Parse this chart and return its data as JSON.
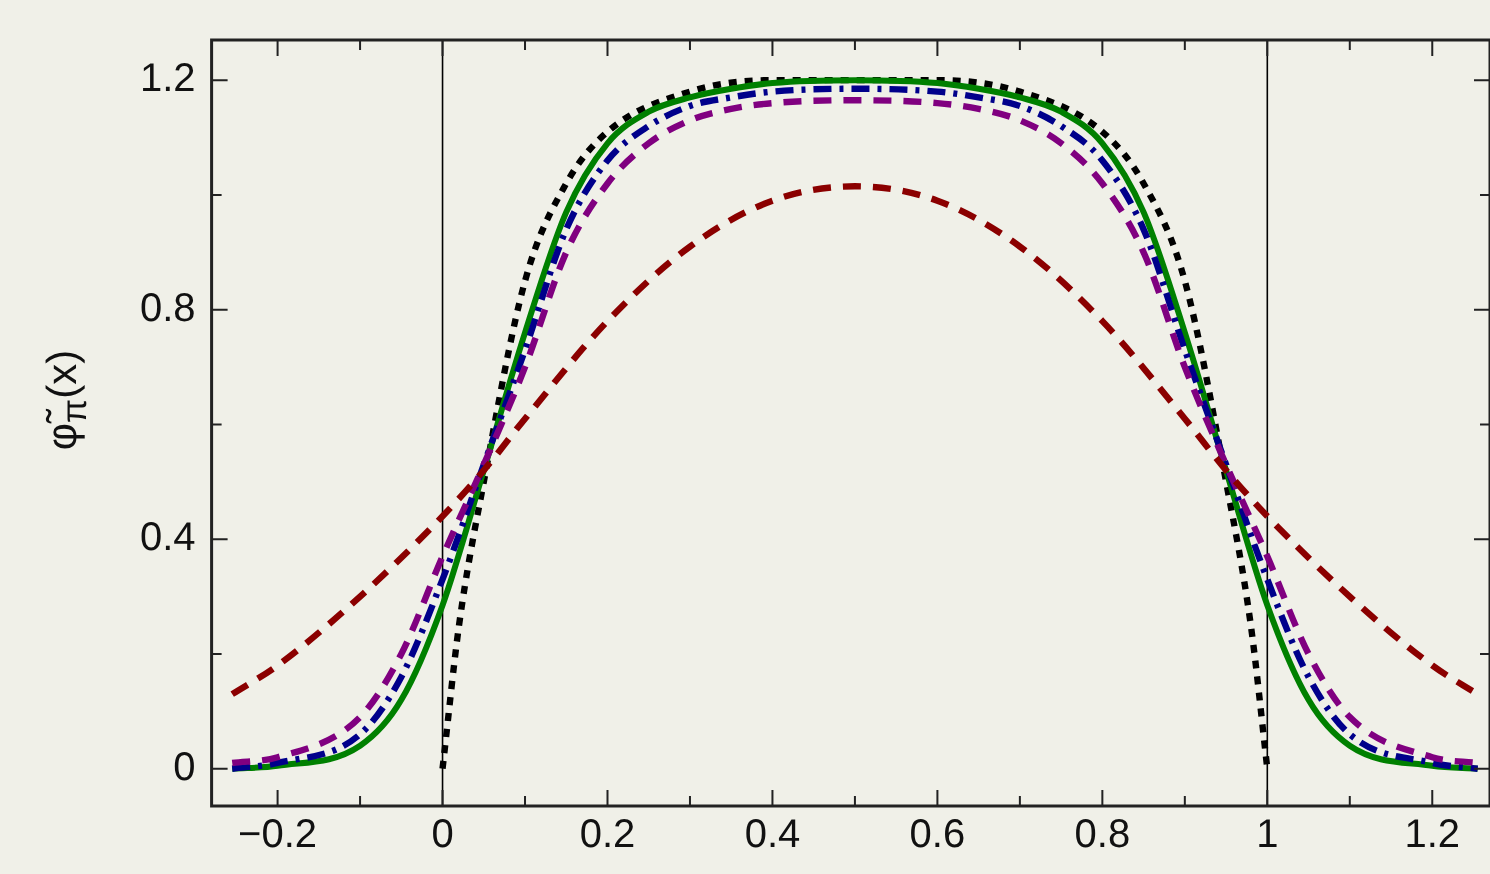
{
  "chart_data": {
    "type": "line",
    "ylabel": "φ̃$_{π}$(x)",
    "xlim": [
      -0.28,
      1.27
    ],
    "ylim": [
      -0.065,
      1.27
    ],
    "xticks": [
      -0.2,
      {
        "value": -0.1,
        "label": null
      },
      0,
      {
        "value": 0.1,
        "label": null
      },
      0.2,
      {
        "value": 0.3,
        "label": null
      },
      0.4,
      {
        "value": 0.5,
        "label": null
      },
      0.6,
      {
        "value": 0.7,
        "label": null
      },
      0.8,
      {
        "value": 0.9,
        "label": null
      },
      1,
      {
        "value": 1.1,
        "label": null
      },
      1.2
    ],
    "yticks": [
      0,
      {
        "value": 0.2,
        "label": null
      },
      0.4,
      {
        "value": 0.6,
        "label": null
      },
      0.8,
      {
        "value": 1.0,
        "label": null
      },
      1.2
    ],
    "grid": false,
    "legend": false,
    "marker": "none",
    "ref_lines": [
      {
        "axis": "x",
        "value": 0,
        "color": "#000000"
      },
      {
        "axis": "x",
        "value": 1,
        "color": "#000000"
      }
    ],
    "series": [
      {
        "color": "#8b0000",
        "line_style": "dashed",
        "x": [
          -0.255,
          -0.2,
          -0.1,
          0,
          0.05,
          0.1,
          0.2,
          0.3,
          0.4,
          0.5,
          0.6,
          0.7,
          0.8,
          0.9,
          0.95,
          1,
          1.1,
          1.2,
          1.255
        ],
        "values": [
          0.13,
          0.18,
          0.3,
          0.44,
          0.52,
          0.61,
          0.78,
          0.91,
          0.99,
          1.015,
          0.99,
          0.91,
          0.78,
          0.61,
          0.52,
          0.44,
          0.3,
          0.18,
          0.13
        ]
      },
      {
        "color": "#800080",
        "line_style": "dashed",
        "x": [
          -0.255,
          -0.2,
          -0.1,
          -0.05,
          0,
          0.05,
          0.1,
          0.15,
          0.2,
          0.25,
          0.3,
          0.35,
          0.4,
          0.5,
          0.6,
          0.65,
          0.7,
          0.75,
          0.8,
          0.85,
          0.9,
          0.95,
          1,
          1.05,
          1.1,
          1.2,
          1.255
        ],
        "values": [
          0.01,
          0.02,
          0.09,
          0.2,
          0.37,
          0.53,
          0.7,
          0.9,
          1.02,
          1.09,
          1.13,
          1.15,
          1.16,
          1.165,
          1.16,
          1.15,
          1.13,
          1.09,
          1.02,
          0.9,
          0.7,
          0.53,
          0.37,
          0.2,
          0.09,
          0.02,
          0.01
        ]
      },
      {
        "color": "#00008b",
        "line_style": "dashdot",
        "x": [
          -0.255,
          -0.2,
          -0.1,
          -0.05,
          0,
          0.05,
          0.1,
          0.15,
          0.2,
          0.25,
          0.3,
          0.35,
          0.4,
          0.5,
          0.6,
          0.65,
          0.7,
          0.75,
          0.8,
          0.85,
          0.9,
          0.95,
          1,
          1.05,
          1.1,
          1.2,
          1.255
        ],
        "values": [
          0,
          0.01,
          0.06,
          0.16,
          0.33,
          0.53,
          0.73,
          0.94,
          1.06,
          1.12,
          1.155,
          1.17,
          1.18,
          1.185,
          1.18,
          1.17,
          1.155,
          1.12,
          1.06,
          0.94,
          0.73,
          0.53,
          0.33,
          0.16,
          0.06,
          0.01,
          0
        ]
      },
      {
        "color": "#008000",
        "line_style": "solid",
        "x": [
          -0.255,
          -0.2,
          -0.1,
          -0.05,
          0,
          0.05,
          0.1,
          0.15,
          0.2,
          0.25,
          0.3,
          0.35,
          0.4,
          0.5,
          0.6,
          0.65,
          0.7,
          0.75,
          0.8,
          0.85,
          0.9,
          0.95,
          1,
          1.05,
          1.1,
          1.2,
          1.255
        ],
        "values": [
          0,
          0.005,
          0.04,
          0.12,
          0.285,
          0.52,
          0.76,
          0.97,
          1.09,
          1.145,
          1.17,
          1.185,
          1.195,
          1.2,
          1.195,
          1.185,
          1.17,
          1.145,
          1.09,
          0.97,
          0.76,
          0.52,
          0.285,
          0.12,
          0.04,
          0.005,
          0
        ]
      },
      {
        "color": "#000000",
        "line_style": "dotted",
        "x": [
          0,
          0.02,
          0.05,
          0.1,
          0.15,
          0.2,
          0.3,
          0.4,
          0.5,
          0.6,
          0.7,
          0.8,
          0.85,
          0.9,
          0.95,
          0.98,
          1
        ],
        "values": [
          0,
          0.25,
          0.5,
          0.85,
          1.02,
          1.11,
          1.18,
          1.2,
          1.2,
          1.2,
          1.18,
          1.11,
          1.02,
          0.85,
          0.5,
          0.25,
          0
        ]
      }
    ]
  }
}
